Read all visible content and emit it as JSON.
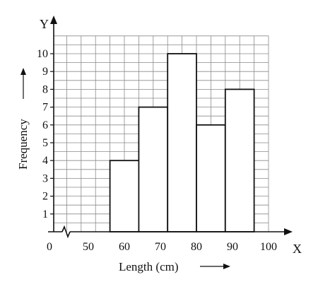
{
  "chart_data": {
    "type": "bar",
    "bins": [
      {
        "start": 56,
        "end": 64,
        "value": 4
      },
      {
        "start": 64,
        "end": 72,
        "value": 7
      },
      {
        "start": 72,
        "end": 80,
        "value": 10
      },
      {
        "start": 80,
        "end": 88,
        "value": 6
      },
      {
        "start": 88,
        "end": 96,
        "value": 8
      }
    ],
    "xlabel": "Length (cm)",
    "ylabel": "Frequency",
    "x_axis_letter": "X",
    "y_axis_letter": "Y",
    "origin_label": "0",
    "x_ticks": [
      {
        "value": 50,
        "label": "50"
      },
      {
        "value": 60,
        "label": "60"
      },
      {
        "value": 70,
        "label": "70"
      },
      {
        "value": 80,
        "label": "80"
      },
      {
        "value": 90,
        "label": "90"
      },
      {
        "value": 100,
        "label": "100"
      }
    ],
    "y_ticks": [
      {
        "value": 1,
        "label": "1"
      },
      {
        "value": 2,
        "label": "2"
      },
      {
        "value": 3,
        "label": "3"
      },
      {
        "value": 4,
        "label": "4"
      },
      {
        "value": 5,
        "label": "5"
      },
      {
        "value": 6,
        "label": "6"
      },
      {
        "value": 7,
        "label": "7"
      },
      {
        "value": 8,
        "label": "8"
      },
      {
        "value": 9,
        "label": "9"
      },
      {
        "value": 10,
        "label": "10"
      }
    ],
    "xlim": [
      44,
      100
    ],
    "ylim": [
      0,
      11
    ],
    "x_axis_break": true,
    "grid": true
  }
}
